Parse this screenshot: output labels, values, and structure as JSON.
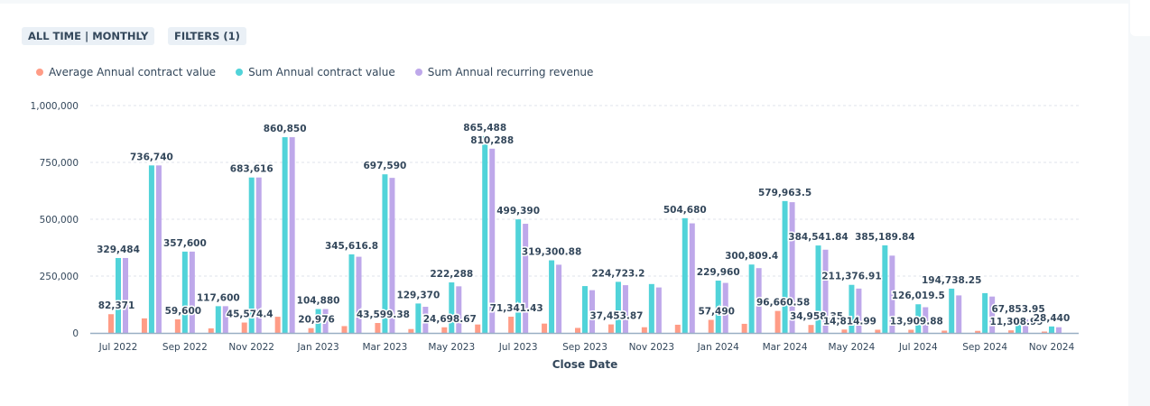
{
  "toolbar": {
    "date_range": "ALL TIME | MONTHLY",
    "filters": "FILTERS (1)"
  },
  "chart_data": {
    "type": "bar",
    "xlabel": "Close Date",
    "ylabel": "",
    "ylim": [
      0,
      1000000
    ],
    "yticks": [
      0,
      250000,
      500000,
      750000,
      1000000
    ],
    "ytick_labels": [
      "0",
      "250,000",
      "500,000",
      "750,000",
      "1,000,000"
    ],
    "grid": true,
    "legend_placement": "top-left",
    "categories": [
      "Jul 2022",
      "Aug 2022",
      "Sep 2022",
      "Oct 2022",
      "Nov 2022",
      "Dec 2022",
      "Jan 2023",
      "Feb 2023",
      "Mar 2023",
      "Apr 2023",
      "May 2023",
      "Jun 2023",
      "Jul 2023",
      "Aug 2023",
      "Sep 2023",
      "Oct 2023",
      "Nov 2023",
      "Dec 2023",
      "Jan 2024",
      "Feb 2024",
      "Mar 2024",
      "Apr 2024",
      "May 2024",
      "Jun 2024",
      "Jul 2024",
      "Aug 2024",
      "Sep 2024",
      "Oct 2024",
      "Nov 2024"
    ],
    "xtick_labels": [
      "Jul 2022",
      "Sep 2022",
      "Nov 2022",
      "Jan 2023",
      "Mar 2023",
      "May 2023",
      "Jul 2023",
      "Sep 2023",
      "Nov 2023",
      "Jan 2024",
      "Mar 2024",
      "May 2024",
      "Jul 2024",
      "Sep 2024",
      "Nov 2024"
    ],
    "series": [
      {
        "name": "Average Annual contract value",
        "color": "#ff9c86",
        "values": [
          82371,
          64000,
          59600,
          20000,
          45574.4,
          71000,
          20976,
          30000,
          43599.38,
          17000,
          24698.67,
          37000,
          71341.43,
          41000,
          22000,
          37453.87,
          25000,
          36000,
          57490,
          40000,
          96660.58,
          34958.35,
          14814.99,
          14000,
          13909.88,
          10000,
          9000,
          11308.99,
          6000
        ]
      },
      {
        "name": "Sum Annual contract value",
        "color": "#51d3d9",
        "values": [
          329484,
          736740,
          357600,
          117600,
          683616,
          860850,
          104880,
          345616.8,
          697590,
          129370,
          222288,
          865488,
          499390,
          319300.88,
          206000,
          224723.2,
          215000,
          504680,
          229960,
          300809.4,
          579963.5,
          384541.84,
          211376.91,
          385189.84,
          126019.5,
          194738.25,
          175000,
          67853.95,
          28440
        ]
      },
      {
        "name": "Sum Annual recurring revenue",
        "color": "#bea8ea",
        "values": [
          329484,
          736740,
          357600,
          117600,
          683616,
          860850,
          104880,
          335000,
          682000,
          115000,
          205000,
          810288,
          480000,
          300000,
          188000,
          210000,
          200000,
          482000,
          220000,
          285000,
          575000,
          366000,
          195000,
          340000,
          113000,
          165000,
          160000,
          60000,
          25000
        ]
      }
    ],
    "data_labels": [
      [
        "Jul 2022",
        1,
        "329,484"
      ],
      [
        "Jul 2022",
        0,
        "82,371"
      ],
      [
        "Aug 2022",
        1,
        "736,740"
      ],
      [
        "Sep 2022",
        1,
        "357,600"
      ],
      [
        "Sep 2022",
        0,
        "59,600"
      ],
      [
        "Oct 2022",
        1,
        "117,600"
      ],
      [
        "Nov 2022",
        0,
        "45,574.4"
      ],
      [
        "Nov 2022",
        1,
        "683,616"
      ],
      [
        "Dec 2022",
        1,
        "860,850"
      ],
      [
        "Jan 2023",
        1,
        "104,880"
      ],
      [
        "Jan 2023",
        0,
        "20,976"
      ],
      [
        "Feb 2023",
        1,
        "345,616.8"
      ],
      [
        "Mar 2023",
        1,
        "697,590"
      ],
      [
        "Mar 2023",
        0,
        "43,599.38"
      ],
      [
        "Apr 2023",
        1,
        "129,370"
      ],
      [
        "May 2023",
        1,
        "222,288"
      ],
      [
        "May 2023",
        0,
        "24,698.67"
      ],
      [
        "Jun 2023",
        1,
        "865,488"
      ],
      [
        "Jun 2023",
        2,
        "810,288"
      ],
      [
        "Jul 2023",
        1,
        "499,390"
      ],
      [
        "Jul 2023",
        0,
        "71,341.43"
      ],
      [
        "Aug 2023",
        1,
        "319,300.88"
      ],
      [
        "Oct 2023",
        1,
        "224,723.2"
      ],
      [
        "Oct 2023",
        0,
        "37,453.87"
      ],
      [
        "Dec 2023",
        1,
        "504,680"
      ],
      [
        "Jan 2024",
        1,
        "229,960"
      ],
      [
        "Jan 2024",
        0,
        "57,490"
      ],
      [
        "Feb 2024",
        1,
        "300,809.4"
      ],
      [
        "Mar 2024",
        1,
        "579,963.5"
      ],
      [
        "Mar 2024",
        0,
        "96,660.58"
      ],
      [
        "Apr 2024",
        1,
        "384,541.84"
      ],
      [
        "Apr 2024",
        0,
        "34,958.35"
      ],
      [
        "May 2024",
        1,
        "211,376.91"
      ],
      [
        "May 2024",
        0,
        "14,814.99"
      ],
      [
        "Jun 2024",
        1,
        "385,189.84"
      ],
      [
        "Jul 2024",
        1,
        "126,019.5"
      ],
      [
        "Jul 2024",
        0,
        "13,909.88"
      ],
      [
        "Aug 2024",
        1,
        "194,738.25"
      ],
      [
        "Oct 2024",
        1,
        "67,853.95"
      ],
      [
        "Oct 2024",
        0,
        "11,308.99"
      ],
      [
        "Nov 2024",
        1,
        "28,440"
      ]
    ]
  }
}
